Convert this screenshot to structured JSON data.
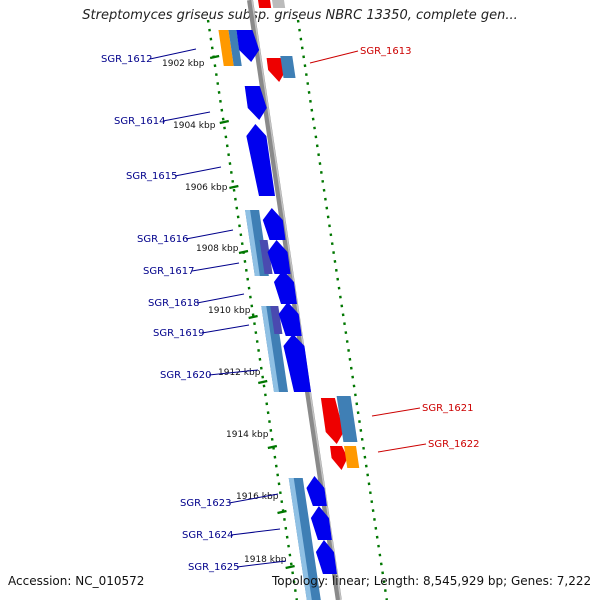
{
  "title": "Streptomyces griseus subsp. griseus NBRC 13350, complete gen...",
  "accession": "Accession: NC_010572",
  "topology": "Topology: linear; Length: 8,545,929 bp; Genes: 7,222",
  "colors": {
    "backbone": "#8a8a8a",
    "forward_gene": "#0000ee",
    "forward_gene_shade": "#6b6bff",
    "reverse_gene": "#ee0000",
    "cds": "#3f7fb5",
    "cds_light": "#8fc0e4",
    "orange": "#ff9900",
    "tick": "#007700",
    "label_forward": "#00008b",
    "label_reverse": "#cc0000"
  },
  "kbp_labels": [
    "1902 kbp",
    "1904 kbp",
    "1906 kbp",
    "1908 kbp",
    "1910 kbp",
    "1912 kbp",
    "1914 kbp",
    "1916 kbp",
    "1918 kbp"
  ],
  "genes_left": [
    {
      "label": "SGR_1612"
    },
    {
      "label": "SGR_1614"
    },
    {
      "label": "SGR_1615"
    },
    {
      "label": "SGR_1616"
    },
    {
      "label": "SGR_1617"
    },
    {
      "label": "SGR_1618"
    },
    {
      "label": "SGR_1619"
    },
    {
      "label": "SGR_1620"
    },
    {
      "label": "SGR_1623"
    },
    {
      "label": "SGR_1624"
    },
    {
      "label": "SGR_1625"
    }
  ],
  "genes_right": [
    {
      "label": "SGR_1613"
    },
    {
      "label": "SGR_1621"
    },
    {
      "label": "SGR_1622"
    }
  ]
}
